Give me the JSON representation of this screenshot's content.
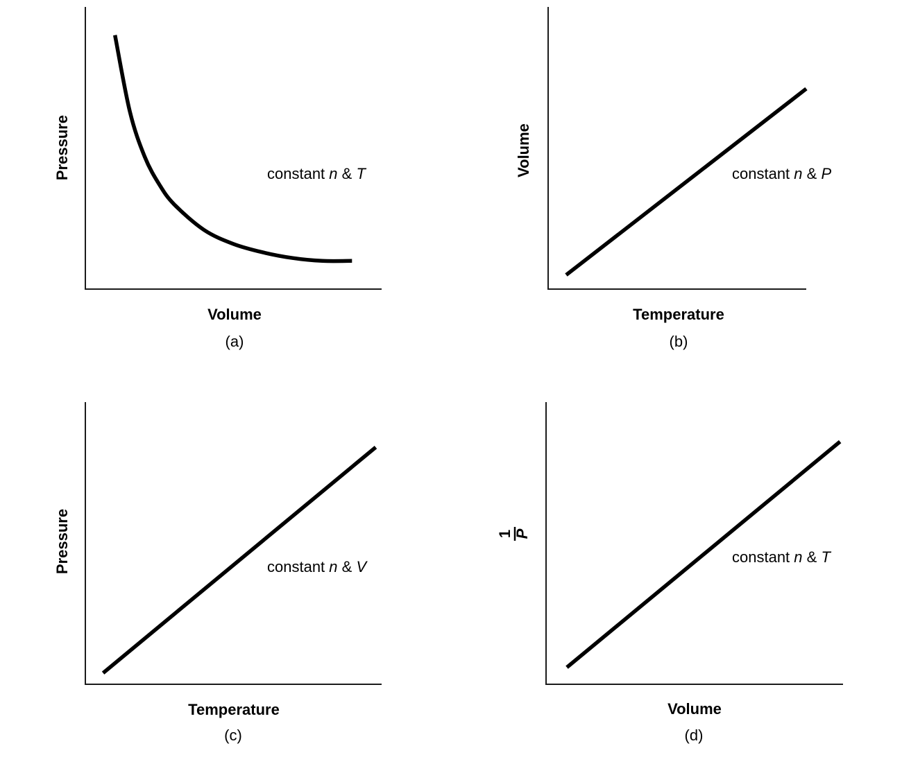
{
  "chart_data": [
    {
      "type": "line",
      "panel": "(a)",
      "xlabel": "Volume",
      "ylabel": "Pressure",
      "annotation": {
        "prefix": "constant ",
        "var1": "n",
        "amp": " & ",
        "var2": "T"
      },
      "curve": "decreasing",
      "x": [
        1,
        1.5,
        2,
        2.5,
        3,
        4,
        5,
        6,
        7,
        8,
        9
      ],
      "y": [
        9.0,
        6.3,
        4.7,
        3.7,
        3.0,
        2.1,
        1.6,
        1.3,
        1.1,
        1.0,
        1.0
      ],
      "xlim": [
        0,
        10
      ],
      "ylim": [
        0,
        10
      ],
      "grid": false
    },
    {
      "type": "line",
      "panel": "(b)",
      "xlabel": "Temperature",
      "ylabel": "Volume",
      "annotation": {
        "prefix": "constant ",
        "var1": "n",
        "amp": " & ",
        "var2": "P"
      },
      "x": [
        0.7,
        10
      ],
      "y": [
        0.5,
        7.1
      ],
      "xlim": [
        0,
        10
      ],
      "ylim": [
        0,
        10
      ],
      "grid": false
    },
    {
      "type": "line",
      "panel": "(c)",
      "xlabel": "Temperature",
      "ylabel": "Pressure",
      "annotation": {
        "prefix": "constant ",
        "var1": "n",
        "amp": " & ",
        "var2": "V"
      },
      "x": [
        0.6,
        9.8
      ],
      "y": [
        0.4,
        8.4
      ],
      "xlim": [
        0,
        10
      ],
      "ylim": [
        0,
        10
      ],
      "grid": false
    },
    {
      "type": "line",
      "panel": "(d)",
      "xlabel": "Volume",
      "ylabel": {
        "numerator": "1",
        "denominator": "P"
      },
      "annotation": {
        "prefix": "constant ",
        "var1": "n",
        "amp": " & ",
        "var2": "T"
      },
      "x": [
        0.7,
        9.9
      ],
      "y": [
        0.6,
        8.6
      ],
      "xlim": [
        0,
        10
      ],
      "ylim": [
        0,
        10
      ],
      "grid": false
    }
  ]
}
